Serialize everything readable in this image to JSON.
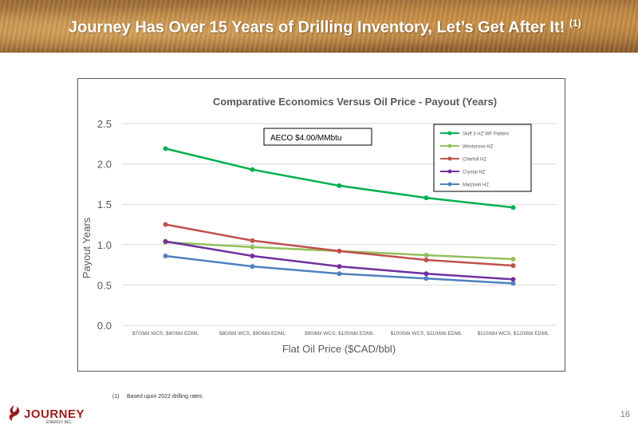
{
  "header": {
    "title": "Journey Has Over 15 Years of Drilling Inventory, Let’s Get After It!",
    "footnote_ref": "(1)"
  },
  "chart_data": {
    "type": "line",
    "title": "Comparative Economics Versus Oil Price - Payout (Years)",
    "xlabel": "Flat Oil Price ($CAD/bbl)",
    "ylabel": "Payout Years",
    "annotation": "AECO $4.00/MMbtu",
    "ylim": [
      0,
      2.5
    ],
    "yticks": [
      "0.0",
      "0.5",
      "1.0",
      "1.5",
      "2.0",
      "2.5"
    ],
    "grid": true,
    "legend_position": "top-right",
    "categories": [
      "$70/bbl WCS, $80/bbl EDML",
      "$80/bbl WCS, $90/bbl EDML",
      "$90/bbl WCS, $100/bbl EDML",
      "$100/bbl WCS, $110/bbl EDML",
      "$110/bbl WCS, $120/bbl EDML"
    ],
    "series": [
      {
        "name": "Skiff 3 HZ WF Pattern",
        "color": "#00b050",
        "values": [
          2.19,
          1.93,
          1.73,
          1.58,
          1.46
        ]
      },
      {
        "name": "Westerose HZ",
        "color": "#92c05a",
        "values": [
          1.03,
          0.97,
          0.92,
          0.87,
          0.82
        ]
      },
      {
        "name": "Cherhill HZ",
        "color": "#c0504d",
        "values": [
          1.25,
          1.05,
          0.92,
          0.81,
          0.74
        ]
      },
      {
        "name": "Crystal HZ",
        "color": "#7030a0",
        "values": [
          1.04,
          0.86,
          0.73,
          0.64,
          0.57
        ]
      },
      {
        "name": "Matziwin HZ",
        "color": "#4f81bd",
        "values": [
          0.86,
          0.73,
          0.64,
          0.58,
          0.52
        ]
      }
    ]
  },
  "footnote": {
    "num": "(1)",
    "text": "Based upon 2022 drilling rates"
  },
  "logo": {
    "name": "JOURNEY",
    "sub": "ENERGY INC.",
    "color": "#9b1d20"
  },
  "page_number": "16"
}
